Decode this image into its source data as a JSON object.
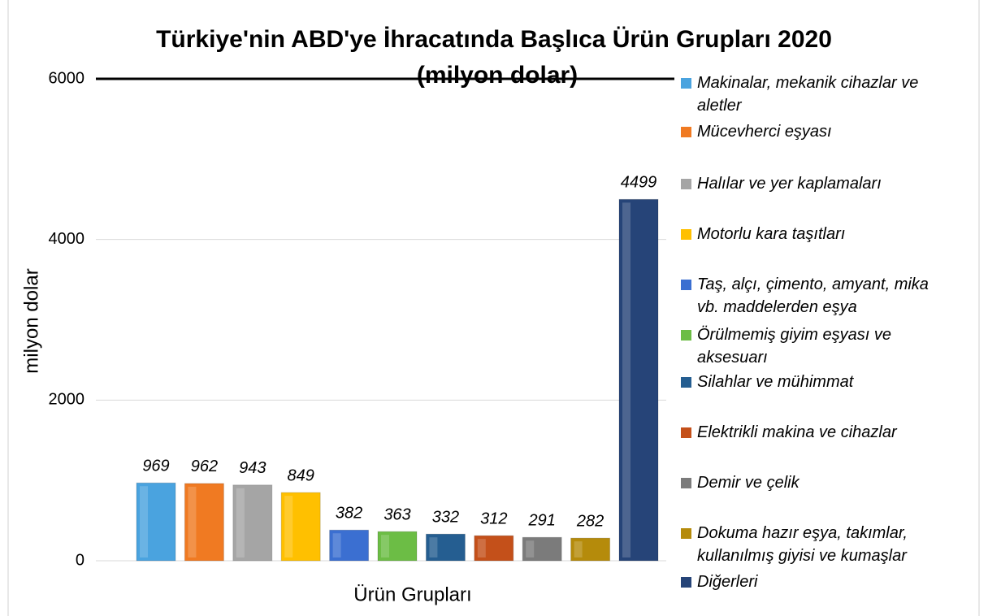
{
  "chart_data": {
    "type": "bar",
    "title": "Türkiye'nin ABD'ye İhracatında Başlıca Ürün Grupları 2020",
    "subtitle": "(milyon dolar)",
    "y_label": "milyon dolar",
    "x_label": "Ürün Grupları",
    "categories": [
      "Makinalar, mekanik cihazlar ve aletler",
      "Mücevherci eşyası",
      "Halılar ve yer kaplamaları",
      "Motorlu kara taşıtları",
      "Taş, alçı, çimento, amyant, mika vb. maddelerden eşya",
      "Örülmemiş giyim eşyası ve aksesuarı",
      "Silahlar ve mühimmat",
      "Elektrikli makina ve cihazlar",
      "Demir ve çelik",
      "Dokuma hazır eşya, takımlar, kullanılmış giyisi ve kumaşlar",
      "Diğerleri"
    ],
    "values": [
      969,
      962,
      943,
      849,
      382,
      363,
      332,
      312,
      291,
      282,
      4499
    ],
    "colors": [
      "#4aa3df",
      "#f07a22",
      "#a5a5a5",
      "#ffc000",
      "#3b6fd1",
      "#6cbd45",
      "#255e91",
      "#c4501a",
      "#7b7b7b",
      "#b58b0b",
      "#264478"
    ],
    "ylim": [
      0,
      6000
    ],
    "yticks": [
      0,
      2000,
      4000,
      6000
    ],
    "grid": true,
    "legend": "right"
  }
}
